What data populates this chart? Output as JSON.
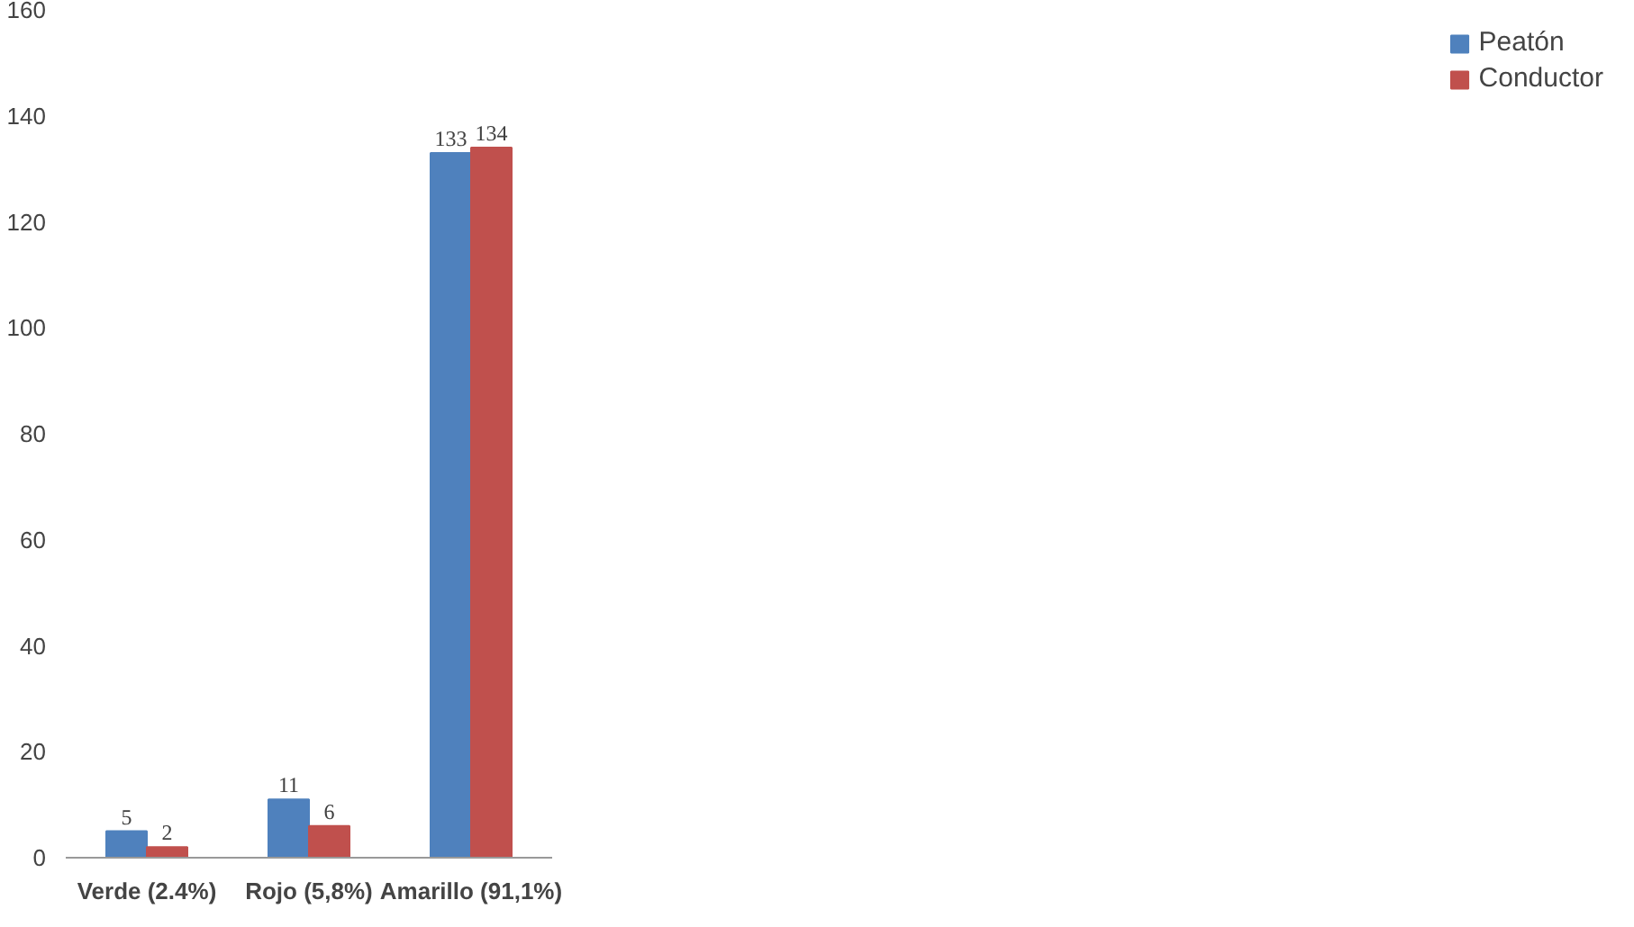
{
  "chart_data": {
    "type": "bar",
    "categories": [
      "Verde (2.4%)",
      "Rojo (5,8%)",
      "Amarillo (91,1%)"
    ],
    "series": [
      {
        "name": "Peatón",
        "color": "#4f81bd",
        "values": [
          5,
          11,
          133
        ]
      },
      {
        "name": "Conductor",
        "color": "#c0504d",
        "values": [
          2,
          6,
          134
        ]
      }
    ],
    "ylim": [
      0,
      160
    ],
    "yticks": [
      0,
      20,
      40,
      60,
      80,
      100,
      120,
      140,
      160
    ],
    "grid": false,
    "legend": "right",
    "data_labels": true
  }
}
